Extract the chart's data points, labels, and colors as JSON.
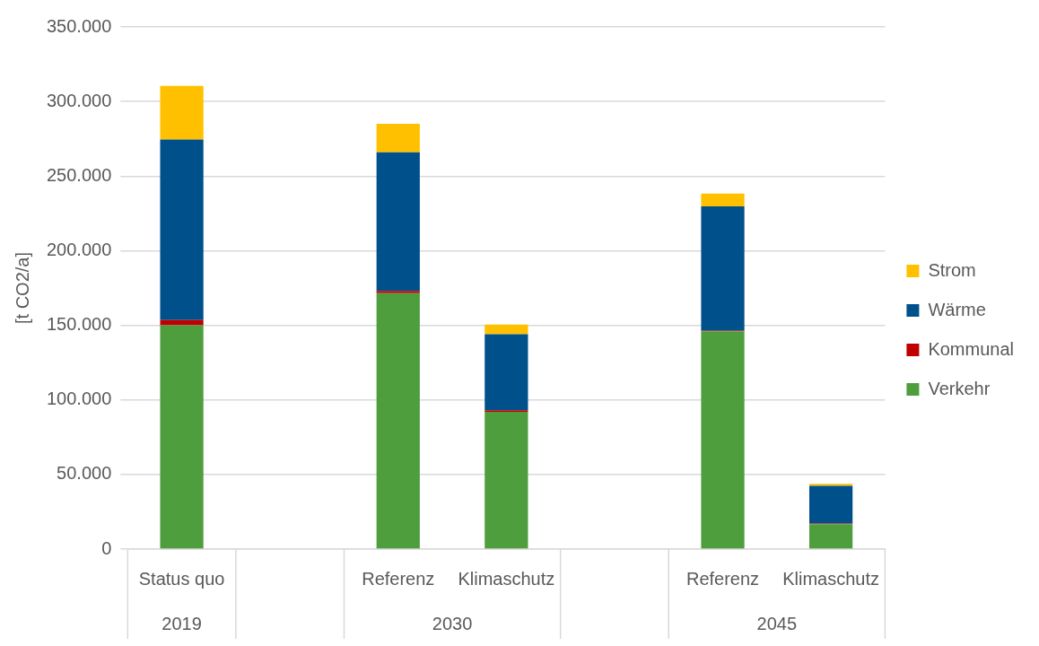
{
  "chart_data": {
    "type": "bar",
    "stacked": true,
    "ylabel": "[t CO2/a]",
    "categories": [
      "Status quo",
      null,
      "Referenz",
      "Klimaschutz",
      null,
      "Referenz",
      "Klimaschutz"
    ],
    "series": [
      {
        "name": "Verkehr",
        "color": "#4e9e3d",
        "values": [
          150000,
          null,
          171500,
          92000,
          null,
          146000,
          16700
        ]
      },
      {
        "name": "Kommunal",
        "color": "#c00000",
        "values": [
          3500,
          null,
          1500,
          1000,
          null,
          500,
          500
        ]
      },
      {
        "name": "Wärme",
        "color": "#00508c",
        "values": [
          121000,
          null,
          93000,
          51000,
          null,
          83300,
          25200
        ]
      },
      {
        "name": "Strom",
        "color": "#ffc000",
        "values": [
          36000,
          null,
          19000,
          6500,
          null,
          8500,
          1300
        ]
      }
    ],
    "ylim": [
      0,
      350000
    ],
    "yticks": [
      {
        "value": 0,
        "label": "0"
      },
      {
        "value": 50000,
        "label": "50.000"
      },
      {
        "value": 100000,
        "label": "100.000"
      },
      {
        "value": 150000,
        "label": "150.000"
      },
      {
        "value": 200000,
        "label": "200.000"
      },
      {
        "value": 250000,
        "label": "250.000"
      },
      {
        "value": 300000,
        "label": "300.000"
      },
      {
        "value": 350000,
        "label": "350.000"
      }
    ],
    "grid": "y",
    "legend": "right",
    "annotations": [
      "2019",
      "2030",
      "2045"
    ]
  }
}
